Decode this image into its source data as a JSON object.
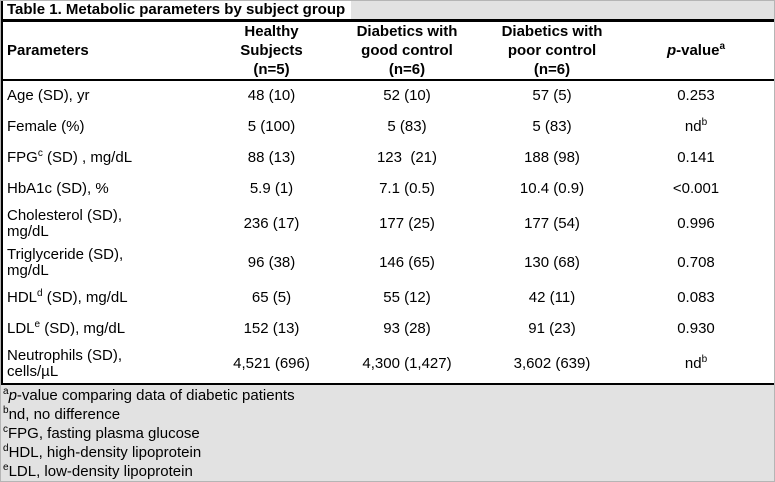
{
  "title": "Table 1. Metabolic parameters by subject group",
  "header": {
    "parameters_label": "Parameters",
    "group_headers": [
      {
        "lines": [
          "Healthy",
          "Subjects",
          "(n=5)"
        ]
      },
      {
        "lines": [
          "Diabetics with",
          "good control",
          "(n=6)"
        ]
      },
      {
        "lines": [
          "Diabetics with",
          "poor control",
          "(n=6)"
        ]
      }
    ],
    "pvalue": {
      "italic": "p",
      "rest": "-value",
      "sup": "a"
    }
  },
  "rows": [
    {
      "label": {
        "pre": "Age (SD), yr",
        "sup": "",
        "post": "",
        "line2": ""
      },
      "cells": [
        {
          "text": "48 (10)",
          "sup": ""
        },
        {
          "text": "52 (10)",
          "sup": ""
        },
        {
          "text": "57 (5)",
          "sup": ""
        },
        {
          "text": "0.253",
          "sup": ""
        }
      ]
    },
    {
      "label": {
        "pre": "Female (%)",
        "sup": "",
        "post": "",
        "line2": ""
      },
      "cells": [
        {
          "text": "5 (100)",
          "sup": ""
        },
        {
          "text": "5 (83)",
          "sup": ""
        },
        {
          "text": "5 (83)",
          "sup": ""
        },
        {
          "text": "nd",
          "sup": "b"
        }
      ]
    },
    {
      "label": {
        "pre": "FPG",
        "sup": "c",
        "post": " (SD) , mg/dL",
        "line2": ""
      },
      "cells": [
        {
          "text": "88 (13)",
          "sup": ""
        },
        {
          "text": "123  (21)",
          "sup": ""
        },
        {
          "text": "188 (98)",
          "sup": ""
        },
        {
          "text": "0.141",
          "sup": ""
        }
      ]
    },
    {
      "label": {
        "pre": "HbA1c (SD), %",
        "sup": "",
        "post": "",
        "line2": ""
      },
      "cells": [
        {
          "text": "5.9 (1)",
          "sup": ""
        },
        {
          "text": "7.1 (0.5)",
          "sup": ""
        },
        {
          "text": "10.4 (0.9)",
          "sup": ""
        },
        {
          "text": "<0.001",
          "sup": ""
        }
      ]
    },
    {
      "label": {
        "pre": "Cholesterol (SD),",
        "sup": "",
        "post": "",
        "line2": "mg/dL"
      },
      "cells": [
        {
          "text": "236 (17)",
          "sup": ""
        },
        {
          "text": "177 (25)",
          "sup": ""
        },
        {
          "text": "177 (54)",
          "sup": ""
        },
        {
          "text": "0.996",
          "sup": ""
        }
      ]
    },
    {
      "label": {
        "pre": "Triglyceride (SD),",
        "sup": "",
        "post": "",
        "line2": "mg/dL"
      },
      "cells": [
        {
          "text": "96 (38)",
          "sup": ""
        },
        {
          "text": "146 (65)",
          "sup": ""
        },
        {
          "text": "130 (68)",
          "sup": ""
        },
        {
          "text": "0.708",
          "sup": ""
        }
      ]
    },
    {
      "label": {
        "pre": "HDL",
        "sup": "d",
        "post": " (SD), mg/dL",
        "line2": ""
      },
      "cells": [
        {
          "text": "65 (5)",
          "sup": ""
        },
        {
          "text": "55 (12)",
          "sup": ""
        },
        {
          "text": "42 (11)",
          "sup": ""
        },
        {
          "text": "0.083",
          "sup": ""
        }
      ]
    },
    {
      "label": {
        "pre": "LDL",
        "sup": "e",
        "post": " (SD), mg/dL",
        "line2": ""
      },
      "cells": [
        {
          "text": "152 (13)",
          "sup": ""
        },
        {
          "text": "93 (28)",
          "sup": ""
        },
        {
          "text": "91 (23)",
          "sup": ""
        },
        {
          "text": "0.930",
          "sup": ""
        }
      ]
    },
    {
      "label": {
        "pre": "Neutrophils (SD),",
        "sup": "",
        "post": "",
        "line2": "cells/µL"
      },
      "cells": [
        {
          "text": "4,521 (696)",
          "sup": ""
        },
        {
          "text": "4,300 (1,427)",
          "sup": ""
        },
        {
          "text": "3,602 (639)",
          "sup": ""
        },
        {
          "text": "nd",
          "sup": "b"
        }
      ]
    }
  ],
  "footnotes": [
    {
      "marker": "a",
      "italic": "p",
      "text": "-value comparing data of diabetic patients"
    },
    {
      "marker": "b",
      "italic": "",
      "text": "nd, no difference"
    },
    {
      "marker": "c",
      "italic": "",
      "text": "FPG, fasting plasma glucose"
    },
    {
      "marker": "d",
      "italic": "",
      "text": "HDL, high-density lipoprotein"
    },
    {
      "marker": "e",
      "italic": "",
      "text": "LDL, low-density lipoprotein"
    }
  ],
  "colors": {
    "band_gray": "#e2e2e2",
    "rule_black": "#000000",
    "background": "#ffffff"
  }
}
